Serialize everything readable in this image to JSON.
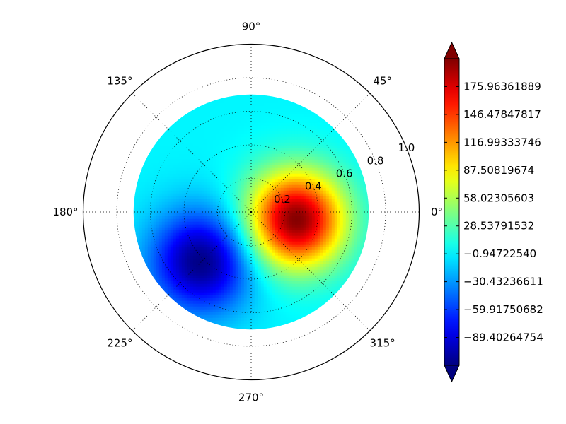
{
  "chart_data": {
    "type": "heatmap",
    "projection": "polar",
    "title": "",
    "angle_ticks": [
      "0°",
      "45°",
      "90°",
      "135°",
      "180°",
      "225°",
      "270°",
      "315°"
    ],
    "radial_ticks": [
      "0.2",
      "0.4",
      "0.6",
      "0.8",
      "1.0"
    ],
    "rlim": [
      0,
      1.0
    ],
    "data_radius": 0.7,
    "grid": true,
    "colormap": "jet",
    "colorbar": {
      "extend": "both",
      "range": [
        -118.88779,
        205.44876
      ],
      "ticks": [
        "175.96361889",
        "146.47847817",
        "116.99333746",
        "87.50819674",
        "58.02305603",
        "28.53791532",
        "−0.94722540",
        "−30.43236611",
        "−59.91750682",
        "−89.40264754"
      ],
      "tick_values": [
        175.96361889,
        146.47847817,
        116.99333746,
        87.50819674,
        58.02305603,
        28.53791532,
        -0.9472254,
        -30.43236611,
        -59.91750682,
        -89.40264754
      ]
    },
    "field": {
      "background": 0,
      "peaks": [
        {
          "r": 0.27,
          "theta_deg": -10,
          "value": 205,
          "spread": 0.2
        },
        {
          "r": 0.42,
          "theta_deg": 225,
          "value": -118,
          "spread": 0.21
        }
      ]
    }
  }
}
